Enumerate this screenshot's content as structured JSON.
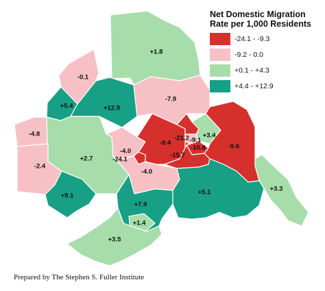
{
  "legend": {
    "title_line1": "Net Domestic Migration",
    "title_line2": "Rate per 1,000 Residents",
    "items": [
      {
        "label": "-24.1 - -9.3",
        "color": "#d6302d"
      },
      {
        "label": "-9.2 - 0.0",
        "color": "#f7c0c5"
      },
      {
        "label": "+0.1 - +4.3",
        "color": "#a6ddaa"
      },
      {
        "label": "+4.4 - +12.9",
        "color": "#17a085"
      }
    ]
  },
  "regions": [
    {
      "name": "north-county",
      "value": "+1.8",
      "class": 2
    },
    {
      "name": "northwest-county",
      "value": "-0.1",
      "class": 1
    },
    {
      "name": "west-county",
      "value": "+5.4",
      "class": 3
    },
    {
      "name": "north-central-county",
      "value": "+12.9",
      "class": 3
    },
    {
      "name": "northeast-county",
      "value": "-7.9",
      "class": 1
    },
    {
      "name": "far-west-county",
      "value": "-4.8",
      "class": 1
    },
    {
      "name": "central-west-county",
      "value": "+2.7",
      "class": 2
    },
    {
      "name": "southwest-county",
      "value": "-2.4",
      "class": 1
    },
    {
      "name": "south-west-county",
      "value": "+9.1",
      "class": 3
    },
    {
      "name": "central-county",
      "value": "-4.0",
      "class": 1
    },
    {
      "name": "central-south-county",
      "value": "-4.0",
      "class": 1
    },
    {
      "name": "core-city-a",
      "value": "-24.1",
      "class": 0
    },
    {
      "name": "core-county-west",
      "value": "-9.4",
      "class": 0
    },
    {
      "name": "core-city-b",
      "value": "-21.2",
      "class": 0
    },
    {
      "name": "core-city-c",
      "value": "-9.1",
      "class": 1
    },
    {
      "name": "core-city-d",
      "value": "-10.8",
      "class": 0
    },
    {
      "name": "core-county-south",
      "value": "-15.7",
      "class": 0
    },
    {
      "name": "core-city-e",
      "value": "+3.4",
      "class": 2
    },
    {
      "name": "east-county",
      "value": "-9.6",
      "class": 0
    },
    {
      "name": "far-east-county",
      "value": "+3.3",
      "class": 2
    },
    {
      "name": "south-county",
      "value": "+7.9",
      "class": 3
    },
    {
      "name": "southeast-county",
      "value": "+5.1",
      "class": 3
    },
    {
      "name": "south-city",
      "value": "+1.4",
      "class": 2
    },
    {
      "name": "far-south-county",
      "value": "+3.5",
      "class": 2
    }
  ],
  "credit": "Prepared by The Stephen S. Fuller Institute"
}
